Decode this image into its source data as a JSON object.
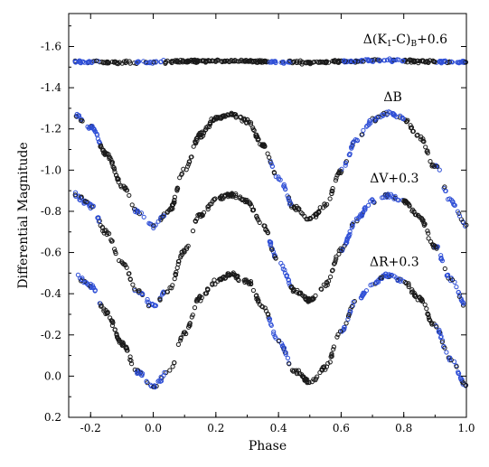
{
  "chart_data": {
    "type": "scatter",
    "title": "",
    "xlabel": "Phase",
    "ylabel": "Differential Magnitude",
    "xlim": [
      -0.27,
      1.0
    ],
    "ylim": [
      0.2,
      -1.76
    ],
    "y_inverted": true,
    "x_ticks": [
      -0.2,
      0.0,
      0.2,
      0.4,
      0.6,
      0.8,
      1.0
    ],
    "x_tick_labels": [
      "-0.2",
      "0.0",
      "0.2",
      "0.4",
      "0.6",
      "0.8",
      "1.0"
    ],
    "y_ticks": [
      0.2,
      0.0,
      -0.2,
      -0.4,
      -0.6,
      -0.8,
      -1.0,
      -1.2,
      -1.4,
      -1.6
    ],
    "y_tick_labels": [
      "0.2",
      "0.0",
      "-0.2",
      "-0.4",
      "-0.6",
      "-0.8",
      "-1.0",
      "-1.2",
      "-1.4",
      "-1.6"
    ],
    "grid": false,
    "marker_colors": {
      "set_a": "#1a1a1a",
      "set_b": "#2f4fd6"
    },
    "curves": [
      {
        "label_parts": [
          "Δ(K",
          "1",
          "-C)",
          "B",
          "+0.6"
        ],
        "baseline": -1.525,
        "phase_mag": [
          [
            -0.25,
            -1.525
          ],
          [
            -0.1,
            -1.522
          ],
          [
            0.0,
            -1.525
          ],
          [
            0.1,
            -1.528
          ],
          [
            0.25,
            -1.53
          ],
          [
            0.4,
            -1.526
          ],
          [
            0.5,
            -1.522
          ],
          [
            0.6,
            -1.528
          ],
          [
            0.75,
            -1.533
          ],
          [
            0.9,
            -1.527
          ],
          [
            1.0,
            -1.523
          ]
        ]
      },
      {
        "label_parts": [
          "ΔB"
        ],
        "phase_mag": [
          [
            -0.25,
            -1.27
          ],
          [
            -0.2,
            -1.21
          ],
          [
            -0.15,
            -1.08
          ],
          [
            -0.1,
            -0.93
          ],
          [
            -0.05,
            -0.8
          ],
          [
            0.0,
            -0.73
          ],
          [
            0.05,
            -0.8
          ],
          [
            0.1,
            -1.0
          ],
          [
            0.15,
            -1.17
          ],
          [
            0.2,
            -1.25
          ],
          [
            0.25,
            -1.27
          ],
          [
            0.3,
            -1.24
          ],
          [
            0.35,
            -1.12
          ],
          [
            0.4,
            -0.96
          ],
          [
            0.45,
            -0.82
          ],
          [
            0.5,
            -0.76
          ],
          [
            0.55,
            -0.83
          ],
          [
            0.6,
            -1.0
          ],
          [
            0.65,
            -1.15
          ],
          [
            0.7,
            -1.24
          ],
          [
            0.75,
            -1.28
          ],
          [
            0.8,
            -1.25
          ],
          [
            0.85,
            -1.16
          ],
          [
            0.9,
            -1.02
          ],
          [
            0.95,
            -0.85
          ],
          [
            1.0,
            -0.73
          ]
        ]
      },
      {
        "label_parts": [
          "ΔV+0.3"
        ],
        "phase_mag": [
          [
            -0.25,
            -0.88
          ],
          [
            -0.2,
            -0.83
          ],
          [
            -0.15,
            -0.7
          ],
          [
            -0.1,
            -0.55
          ],
          [
            -0.05,
            -0.41
          ],
          [
            0.0,
            -0.34
          ],
          [
            0.05,
            -0.42
          ],
          [
            0.1,
            -0.61
          ],
          [
            0.15,
            -0.78
          ],
          [
            0.2,
            -0.86
          ],
          [
            0.25,
            -0.88
          ],
          [
            0.3,
            -0.85
          ],
          [
            0.35,
            -0.73
          ],
          [
            0.4,
            -0.56
          ],
          [
            0.45,
            -0.42
          ],
          [
            0.5,
            -0.37
          ],
          [
            0.55,
            -0.44
          ],
          [
            0.6,
            -0.61
          ],
          [
            0.65,
            -0.76
          ],
          [
            0.7,
            -0.85
          ],
          [
            0.75,
            -0.88
          ],
          [
            0.8,
            -0.85
          ],
          [
            0.85,
            -0.77
          ],
          [
            0.9,
            -0.63
          ],
          [
            0.95,
            -0.47
          ],
          [
            1.0,
            -0.34
          ]
        ]
      },
      {
        "label_parts": [
          "ΔR+0.3"
        ],
        "phase_mag": [
          [
            -0.25,
            -0.49
          ],
          [
            -0.2,
            -0.44
          ],
          [
            -0.15,
            -0.31
          ],
          [
            -0.1,
            -0.16
          ],
          [
            -0.05,
            -0.02
          ],
          [
            0.0,
            0.05
          ],
          [
            0.05,
            -0.02
          ],
          [
            0.1,
            -0.21
          ],
          [
            0.15,
            -0.38
          ],
          [
            0.2,
            -0.46
          ],
          [
            0.25,
            -0.49
          ],
          [
            0.3,
            -0.46
          ],
          [
            0.35,
            -0.34
          ],
          [
            0.4,
            -0.17
          ],
          [
            0.45,
            -0.03
          ],
          [
            0.5,
            0.03
          ],
          [
            0.55,
            -0.04
          ],
          [
            0.6,
            -0.22
          ],
          [
            0.65,
            -0.37
          ],
          [
            0.7,
            -0.45
          ],
          [
            0.75,
            -0.49
          ],
          [
            0.8,
            -0.46
          ],
          [
            0.85,
            -0.38
          ],
          [
            0.9,
            -0.24
          ],
          [
            0.95,
            -0.08
          ],
          [
            1.0,
            0.05
          ]
        ]
      }
    ]
  }
}
